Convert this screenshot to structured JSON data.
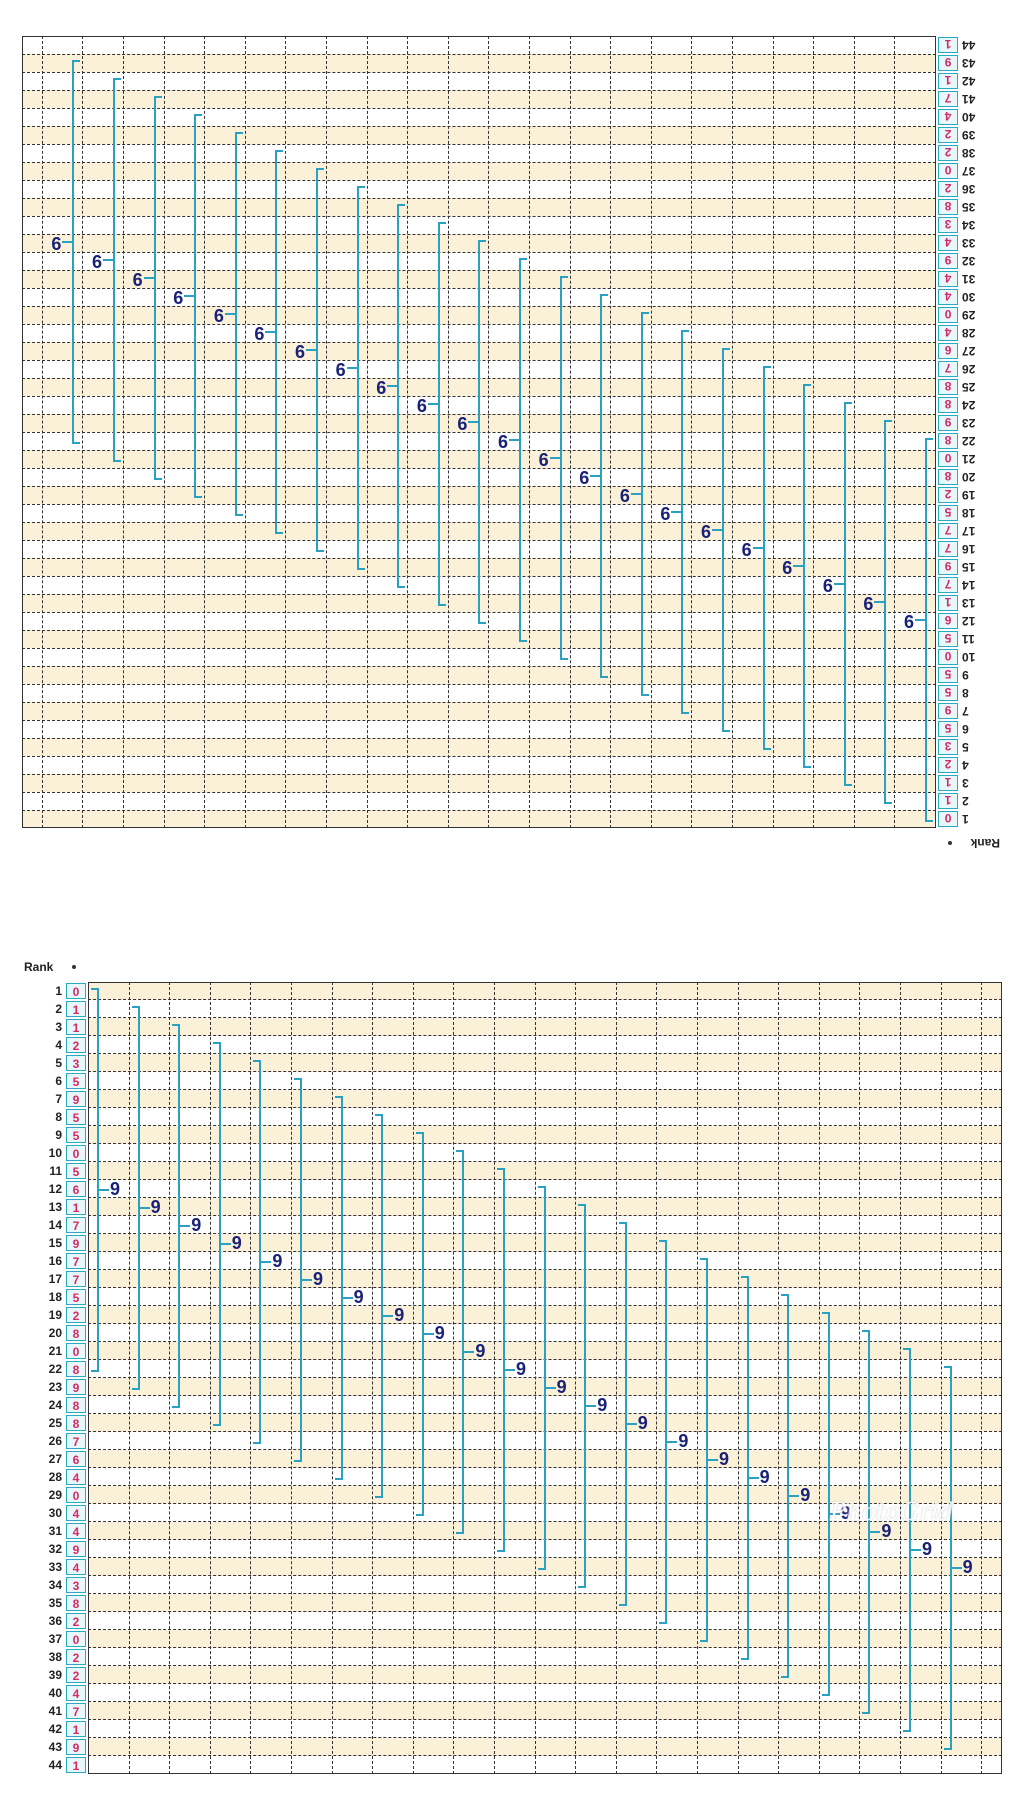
{
  "rank_header": "Rank",
  "ranks": [
    "1",
    "2",
    "3",
    "4",
    "5",
    "6",
    "7",
    "8",
    "9",
    "10",
    "11",
    "12",
    "13",
    "14",
    "15",
    "16",
    "17",
    "18",
    "19",
    "20",
    "21",
    "22",
    "23",
    "24",
    "25",
    "26",
    "27",
    "28",
    "29",
    "30",
    "31",
    "32",
    "33",
    "34",
    "35",
    "36",
    "37",
    "38",
    "39",
    "40",
    "41",
    "42",
    "43",
    "44"
  ],
  "digits": [
    "0",
    "1",
    "1",
    "2",
    "3",
    "5",
    "9",
    "5",
    "5",
    "0",
    "5",
    "6",
    "1",
    "7",
    "9",
    "7",
    "7",
    "5",
    "2",
    "8",
    "0",
    "8",
    "9",
    "8",
    "8",
    "7",
    "6",
    "4",
    "0",
    "4",
    "4",
    "9",
    "4",
    "3",
    "8",
    "2",
    "0",
    "2",
    "2",
    "4",
    "7",
    "1",
    "9",
    "1"
  ],
  "bracket_label": "9",
  "watermark": "PhotoGrid",
  "colors": {
    "cream_band": "#fbf1d8",
    "bracket": "#2aa0c2",
    "digit_text": "#d6286b",
    "label_text": "#1a2278"
  }
}
